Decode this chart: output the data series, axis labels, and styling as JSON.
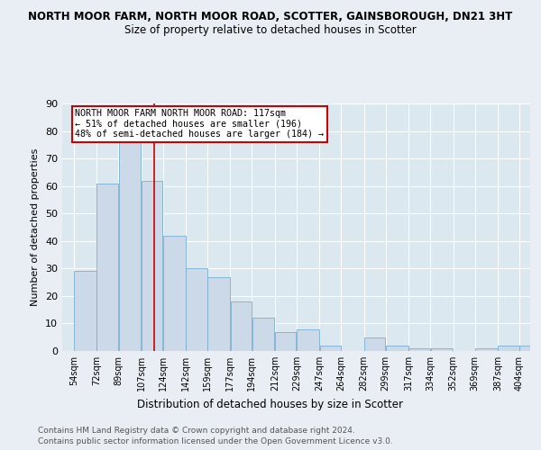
{
  "title1": "NORTH MOOR FARM, NORTH MOOR ROAD, SCOTTER, GAINSBOROUGH, DN21 3HT",
  "title2": "Size of property relative to detached houses in Scotter",
  "xlabel": "Distribution of detached houses by size in Scotter",
  "ylabel": "Number of detached properties",
  "bin_labels": [
    "54sqm",
    "72sqm",
    "89sqm",
    "107sqm",
    "124sqm",
    "142sqm",
    "159sqm",
    "177sqm",
    "194sqm",
    "212sqm",
    "229sqm",
    "247sqm",
    "264sqm",
    "282sqm",
    "299sqm",
    "317sqm",
    "334sqm",
    "352sqm",
    "369sqm",
    "387sqm",
    "404sqm"
  ],
  "bin_edges": [
    54,
    72,
    89,
    107,
    124,
    142,
    159,
    177,
    194,
    212,
    229,
    247,
    264,
    282,
    299,
    317,
    334,
    352,
    369,
    387,
    404
  ],
  "bar_values": [
    29,
    61,
    76,
    62,
    42,
    30,
    27,
    18,
    12,
    7,
    8,
    2,
    0,
    5,
    2,
    1,
    1,
    0,
    1,
    2,
    2
  ],
  "bar_color": "#ccd9e8",
  "bar_edge_color": "#7baecf",
  "vline_x": 117,
  "vline_color": "#cc0000",
  "ylim": [
    0,
    90
  ],
  "yticks": [
    0,
    10,
    20,
    30,
    40,
    50,
    60,
    70,
    80,
    90
  ],
  "annotation_text": "NORTH MOOR FARM NORTH MOOR ROAD: 117sqm\n← 51% of detached houses are smaller (196)\n48% of semi-detached houses are larger (184) →",
  "annotation_box_facecolor": "#ffffff",
  "annotation_box_edge": "#cc0000",
  "footer1": "Contains HM Land Registry data © Crown copyright and database right 2024.",
  "footer2": "Contains public sector information licensed under the Open Government Licence v3.0.",
  "plot_bg_color": "#dce8f0",
  "fig_bg_color": "#e8eef4",
  "grid_color": "#ffffff",
  "title1_fontsize": 8.5,
  "title2_fontsize": 8.5
}
